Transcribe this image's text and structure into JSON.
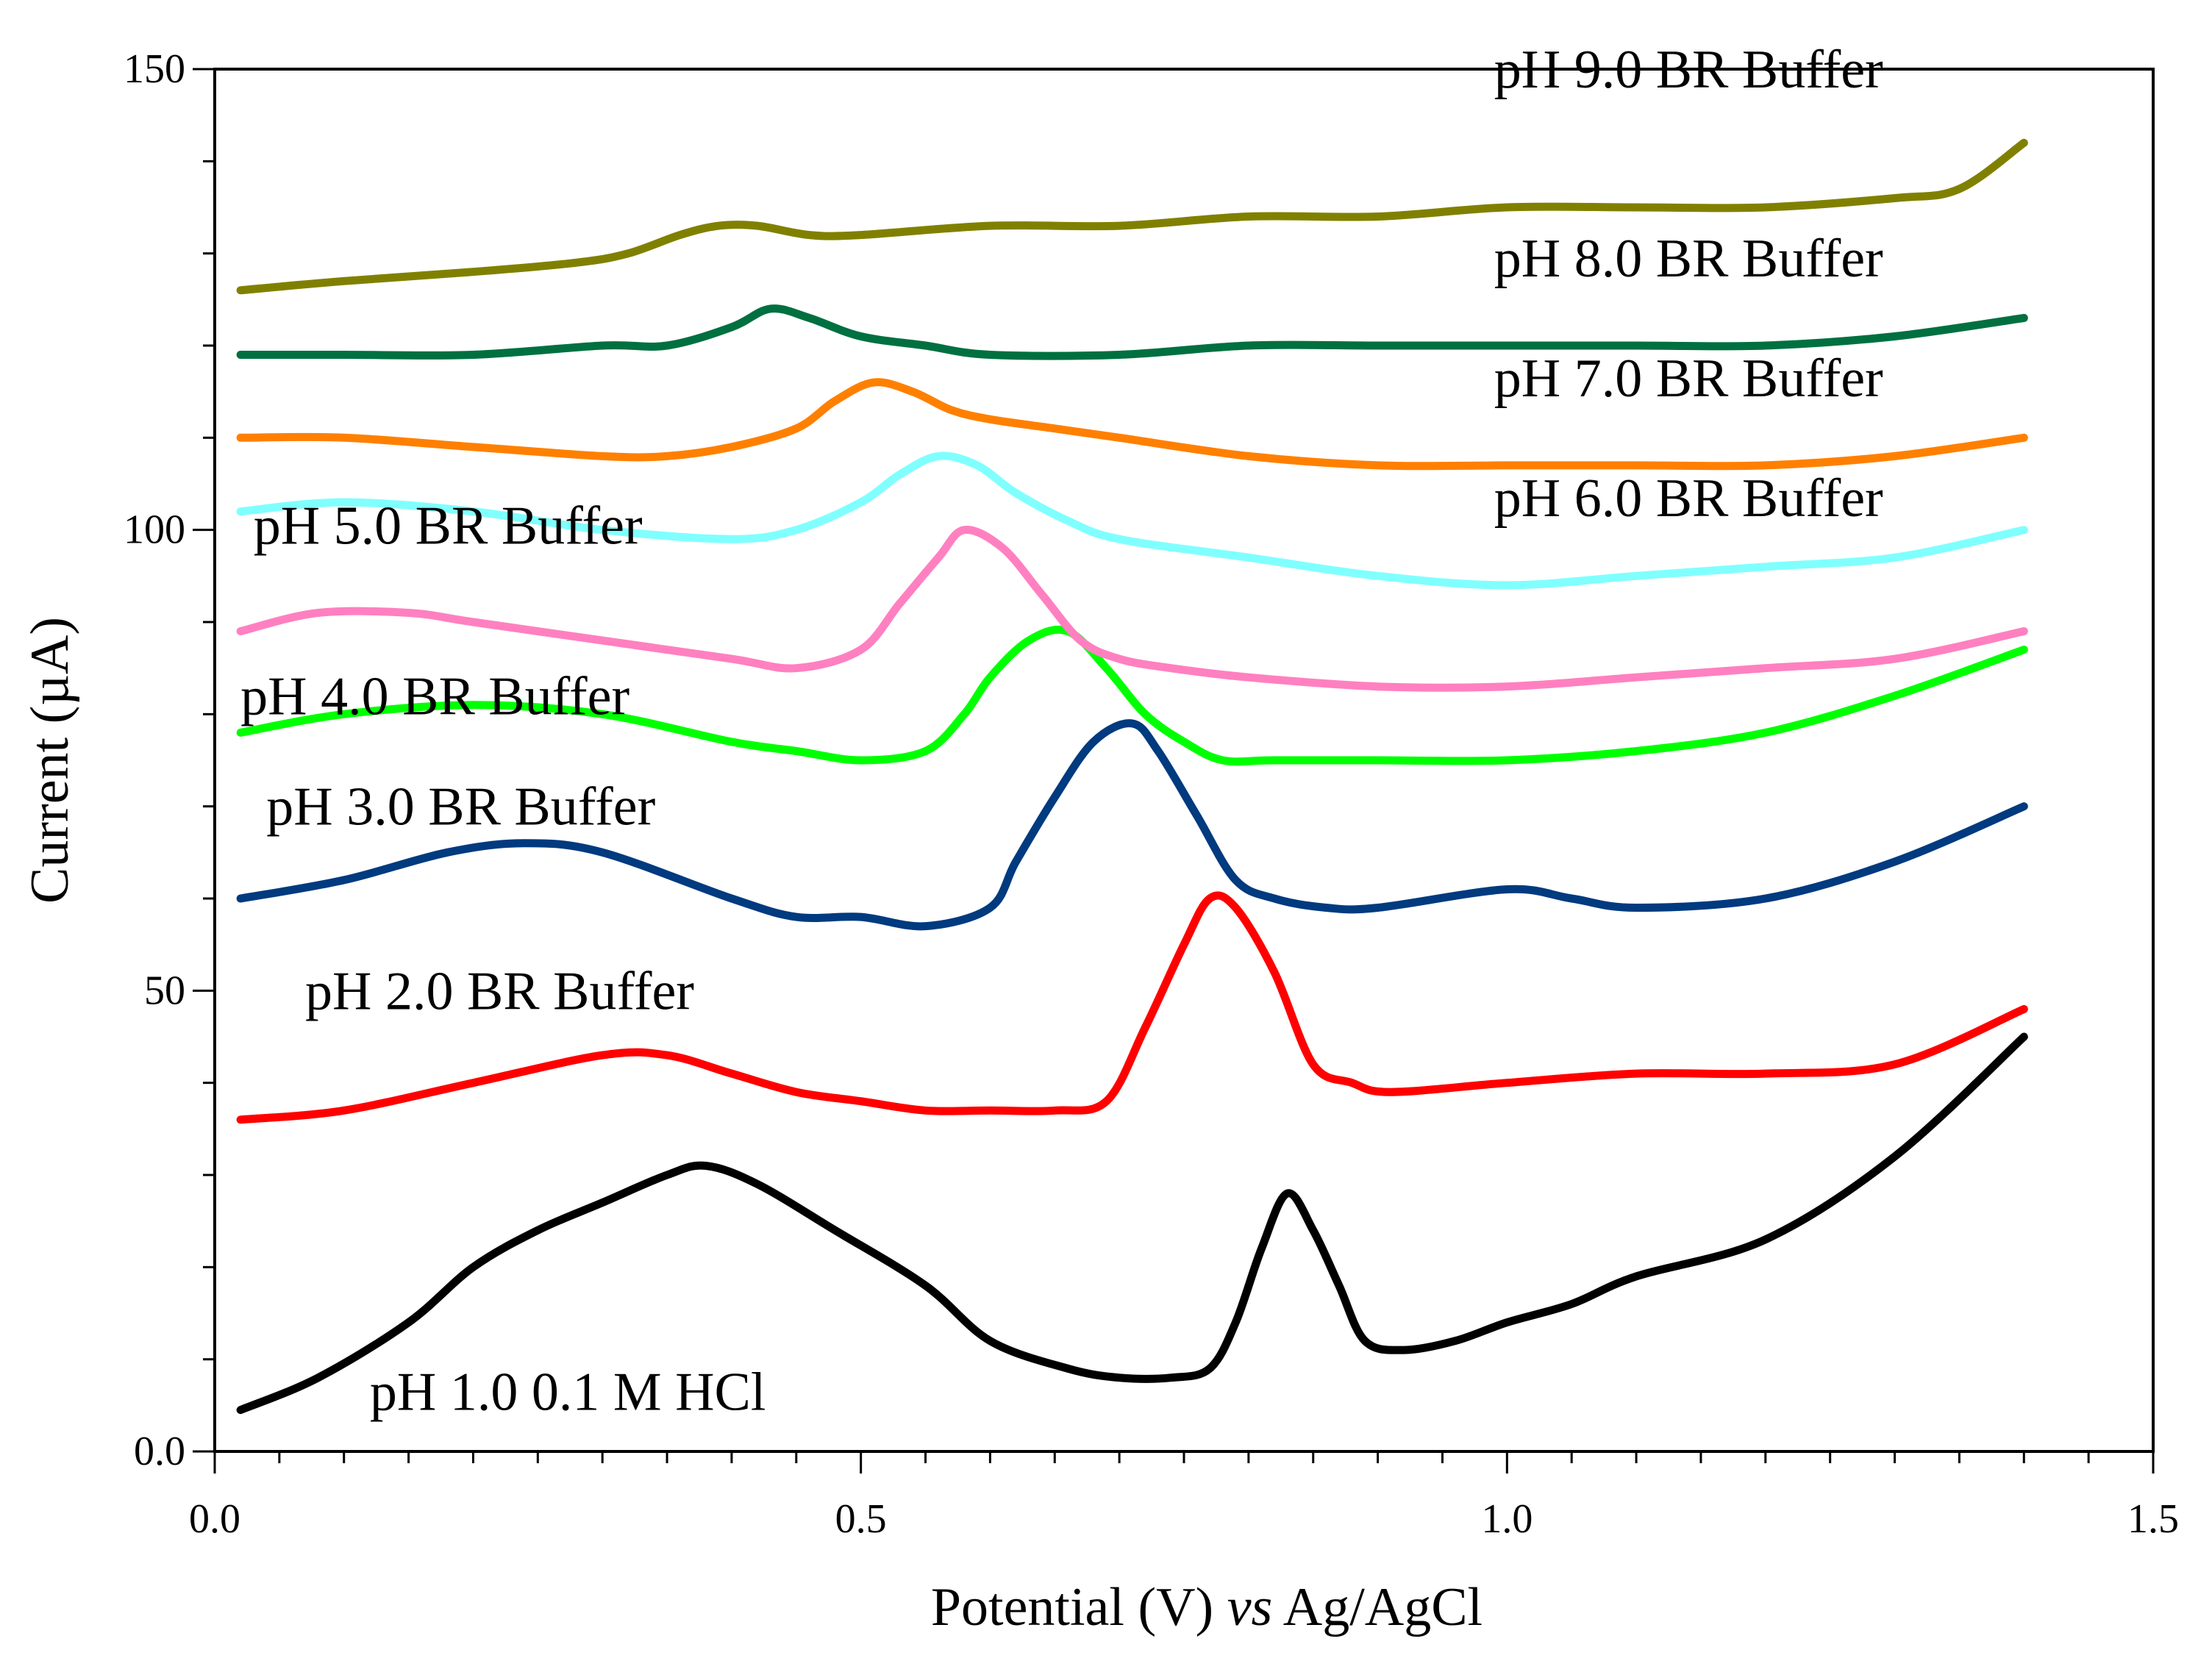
{
  "chart_data": {
    "type": "line",
    "title": "",
    "xlabel_parts": [
      "Potential (V) ",
      "vs",
      " Ag/AgCl"
    ],
    "ylabel": "Current (µA)",
    "xlim": [
      0.0,
      1.5
    ],
    "ylim": [
      0.0,
      150
    ],
    "x_ticks": [
      0.0,
      0.5,
      1.0,
      1.5
    ],
    "x_tick_labels": [
      "0.0",
      "0.5",
      "1.0",
      "1.5"
    ],
    "y_ticks": [
      0,
      50,
      100,
      150
    ],
    "y_tick_labels": [
      "0.0",
      "50",
      "100",
      "150"
    ],
    "grid": false,
    "series": [
      {
        "name": "pH 1.0  0.1  M HCl",
        "label_text": "pH 1.0  0.1  M HCl",
        "color": "#000000",
        "label_anchor": [
          0.12,
          4.5
        ],
        "x": [
          0.02,
          0.08,
          0.15,
          0.2,
          0.25,
          0.3,
          0.35,
          0.38,
          0.42,
          0.48,
          0.55,
          0.6,
          0.66,
          0.7,
          0.74,
          0.77,
          0.79,
          0.81,
          0.83,
          0.85,
          0.87,
          0.89,
          0.92,
          0.96,
          1.0,
          1.05,
          1.1,
          1.2,
          1.3,
          1.4
        ],
        "values": [
          4.5,
          8,
          14,
          20,
          24,
          27,
          30,
          31,
          29,
          24,
          18,
          12,
          9,
          8,
          8,
          9,
          14,
          22,
          28,
          24,
          18,
          12,
          11,
          12,
          14,
          16,
          19,
          23,
          32,
          45
        ]
      },
      {
        "name": "pH 2.0 BR Buffer",
        "label_text": "pH 2.0 BR Buffer",
        "color": "#ff0000",
        "label_anchor": [
          0.07,
          48
        ],
        "x": [
          0.02,
          0.1,
          0.2,
          0.3,
          0.35,
          0.4,
          0.45,
          0.5,
          0.55,
          0.6,
          0.65,
          0.69,
          0.72,
          0.75,
          0.77,
          0.79,
          0.82,
          0.85,
          0.88,
          0.91,
          1.0,
          1.1,
          1.2,
          1.3,
          1.4
        ],
        "values": [
          36,
          37,
          40,
          43,
          43,
          41,
          39,
          38,
          37,
          37,
          37,
          38,
          46,
          55,
          60,
          59,
          52,
          42,
          40,
          39,
          40,
          41,
          41,
          42,
          48
        ]
      },
      {
        "name": "pH 3.0 BR Buffer",
        "label_text": "pH 3.0 BR Buffer",
        "color": "#003a7f",
        "label_anchor": [
          0.04,
          68
        ],
        "x": [
          0.02,
          0.1,
          0.18,
          0.24,
          0.3,
          0.4,
          0.45,
          0.5,
          0.55,
          0.6,
          0.62,
          0.65,
          0.68,
          0.71,
          0.73,
          0.76,
          0.79,
          0.82,
          0.86,
          0.9,
          1.0,
          1.05,
          1.1,
          1.2,
          1.3,
          1.4
        ],
        "values": [
          60,
          62,
          65,
          66,
          65,
          60,
          58,
          58,
          57,
          59,
          64,
          71,
          77,
          79,
          76,
          69,
          62,
          60,
          59,
          59,
          61,
          60,
          59,
          60,
          64,
          70
        ]
      },
      {
        "name": "pH 4.0 BR Buffer",
        "label_text": "pH 4.0 BR Buffer",
        "color": "#00ff00",
        "label_anchor": [
          0.02,
          80
        ],
        "x": [
          0.02,
          0.1,
          0.2,
          0.3,
          0.4,
          0.45,
          0.5,
          0.55,
          0.58,
          0.6,
          0.63,
          0.66,
          0.69,
          0.72,
          0.75,
          0.78,
          0.82,
          0.9,
          1.0,
          1.1,
          1.2,
          1.3,
          1.4
        ],
        "values": [
          78,
          80,
          81,
          80,
          77,
          76,
          75,
          76,
          80,
          84,
          88,
          89,
          85,
          80,
          77,
          75,
          75,
          75,
          75,
          76,
          78,
          82,
          87
        ]
      },
      {
        "name": "pH 5.0 BR Buffer",
        "label_text": "pH 5.0 BR Buffer",
        "color": "#ff80c0",
        "label_anchor": [
          0.03,
          98.5
        ],
        "x": [
          0.02,
          0.08,
          0.15,
          0.2,
          0.3,
          0.4,
          0.45,
          0.5,
          0.53,
          0.56,
          0.58,
          0.61,
          0.64,
          0.67,
          0.7,
          0.74,
          0.8,
          0.9,
          1.0,
          1.1,
          1.2,
          1.3,
          1.4
        ],
        "values": [
          89,
          91,
          91,
          90,
          88,
          86,
          85,
          87,
          92,
          97,
          100,
          98,
          93,
          88,
          86,
          85,
          84,
          83,
          83,
          84,
          85,
          86,
          89
        ]
      },
      {
        "name": "pH 6.0 BR Buffer",
        "label_text": "pH 6.0 BR Buffer",
        "color": "#80ffff",
        "label_anchor": [
          0.99,
          101.5
        ],
        "x": [
          0.02,
          0.1,
          0.2,
          0.3,
          0.4,
          0.45,
          0.5,
          0.53,
          0.56,
          0.59,
          0.62,
          0.66,
          0.7,
          0.8,
          0.9,
          1.0,
          1.1,
          1.2,
          1.3,
          1.4
        ],
        "values": [
          102,
          103,
          102,
          100,
          99,
          100,
          103,
          106,
          108,
          107,
          104,
          101,
          99,
          97,
          95,
          94,
          95,
          96,
          97,
          100
        ]
      },
      {
        "name": "pH 7.0 BR Buffer",
        "label_text": "pH 7.0 BR Buffer",
        "color": "#ff8000",
        "label_anchor": [
          0.99,
          114.5
        ],
        "x": [
          0.02,
          0.1,
          0.2,
          0.3,
          0.35,
          0.4,
          0.45,
          0.48,
          0.51,
          0.54,
          0.57,
          0.6,
          0.65,
          0.7,
          0.8,
          0.9,
          1.0,
          1.1,
          1.2,
          1.3,
          1.4
        ],
        "values": [
          110,
          110,
          109,
          108,
          108,
          109,
          111,
          114,
          116,
          115,
          113,
          112,
          111,
          110,
          108,
          107,
          107,
          107,
          107,
          108,
          110
        ]
      },
      {
        "name": "pH 8.0 BR Buffer",
        "label_text": "pH 8.0 BR Buffer",
        "color": "#007040",
        "label_anchor": [
          0.99,
          127.5
        ],
        "x": [
          0.02,
          0.1,
          0.2,
          0.3,
          0.35,
          0.4,
          0.43,
          0.46,
          0.5,
          0.55,
          0.6,
          0.7,
          0.8,
          0.9,
          1.0,
          1.1,
          1.2,
          1.3,
          1.4
        ],
        "values": [
          119,
          119,
          119,
          120,
          120,
          122,
          124,
          123,
          121,
          120,
          119,
          119,
          120,
          120,
          120,
          120,
          120,
          121,
          123
        ]
      },
      {
        "name": "pH 9.0 BR Buffer",
        "label_text": "pH 9.0 BR Buffer",
        "color": "#808000",
        "label_anchor": [
          0.99,
          148
        ],
        "x": [
          0.02,
          0.1,
          0.2,
          0.28,
          0.32,
          0.36,
          0.39,
          0.42,
          0.46,
          0.5,
          0.6,
          0.7,
          0.8,
          0.9,
          1.0,
          1.1,
          1.2,
          1.3,
          1.35,
          1.4
        ],
        "values": [
          126,
          127,
          128,
          129,
          130,
          132,
          133,
          133,
          132,
          132,
          133,
          133,
          134,
          134,
          135,
          135,
          135,
          136,
          137,
          142
        ]
      }
    ]
  }
}
